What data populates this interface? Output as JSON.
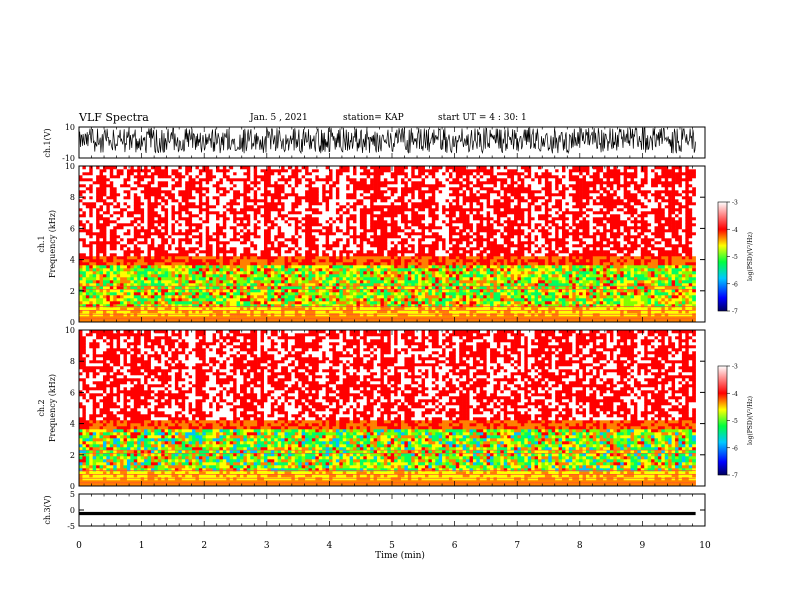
{
  "header": {
    "title": "VLF Spectra",
    "date": "Jan. 5 , 2021",
    "station": "station= KAP",
    "start": "start UT = 4 : 30: 1"
  },
  "chart_data": [
    {
      "type": "line",
      "panel": "ch1-waveform",
      "ylabel": "ch.1(V)",
      "ylim": [
        -10,
        10
      ],
      "yticks": [
        10,
        -10
      ],
      "xlim": [
        0,
        10
      ],
      "description_values": "dense noisy waveform, mostly within roughly -6 to 8 V"
    },
    {
      "type": "heatmap",
      "panel": "ch1-spectrogram",
      "ylabel": "ch.1 Frequency (kHz)",
      "ylim": [
        0,
        10
      ],
      "yticks": [
        0,
        2,
        4,
        6,
        8,
        10
      ],
      "xlim": [
        0,
        10
      ],
      "colorbar": {
        "label": "log(PSD)(V²/Hz)",
        "range": [
          -7,
          -3
        ],
        "ticks": [
          -3,
          -4,
          -5,
          -6,
          -7
        ]
      }
    },
    {
      "type": "heatmap",
      "panel": "ch2-spectrogram",
      "ylabel": "ch.2 Frequency (kHz)",
      "ylim": [
        0,
        10
      ],
      "yticks": [
        0,
        2,
        4,
        6,
        8,
        10
      ],
      "xlim": [
        0,
        10
      ],
      "colorbar": {
        "label": "log(PSD)(V²/Hz)",
        "range": [
          -7,
          -3
        ],
        "ticks": [
          -3,
          -4,
          -5,
          -6,
          -7
        ]
      }
    },
    {
      "type": "line",
      "panel": "ch3-waveform",
      "ylabel": "ch.3(V)",
      "ylim": [
        -5,
        5
      ],
      "yticks": [
        5,
        0,
        -5
      ],
      "xlim": [
        0,
        10
      ],
      "description_values": "nearly constant band around -1 V"
    }
  ],
  "xaxis": {
    "label": "Time (min)",
    "ticks": [
      "0",
      "1",
      "2",
      "3",
      "4",
      "5",
      "6",
      "7",
      "8",
      "9",
      "10"
    ],
    "range": [
      0,
      10
    ]
  },
  "colors": {
    "background": "#ffffff",
    "trace": "#000000",
    "cmap": [
      "#000080",
      "#0000ff",
      "#00c0ff",
      "#00ff60",
      "#80ff00",
      "#ffff00",
      "#ff8000",
      "#ff0000",
      "#ffffff"
    ]
  }
}
